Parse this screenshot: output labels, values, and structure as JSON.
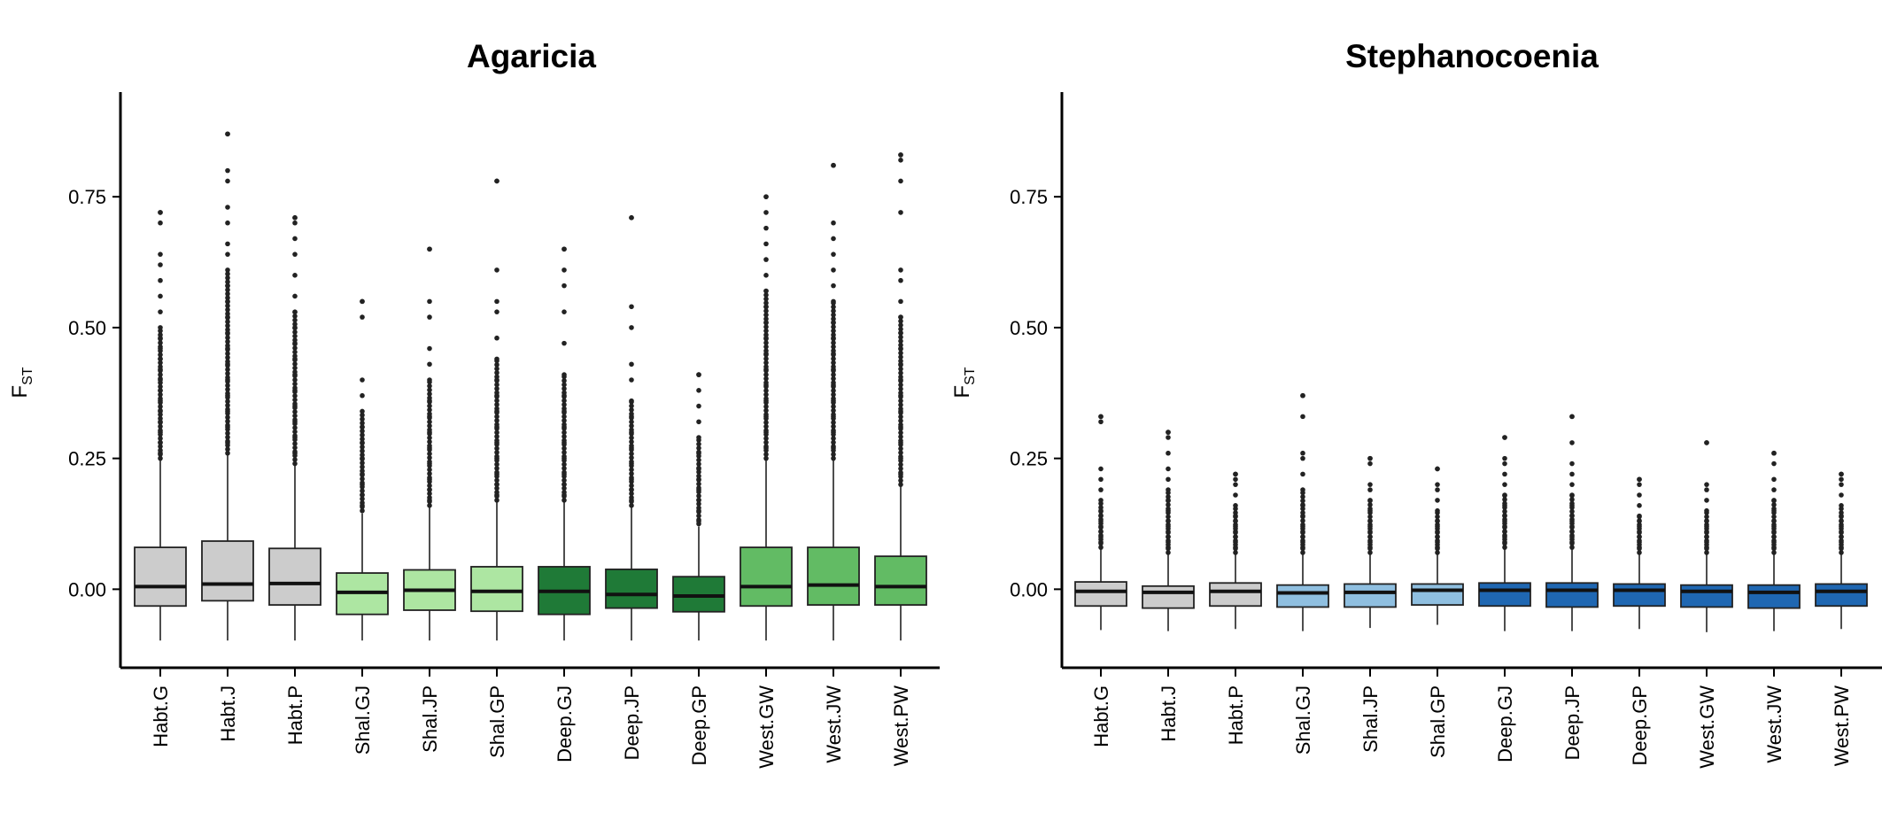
{
  "chart_data": [
    {
      "type": "box",
      "title": "Agaricia",
      "ylabel": "F",
      "ylabel_sub": "ST",
      "ylim": [
        -0.15,
        0.95
      ],
      "yticks": [
        0.0,
        0.25,
        0.5,
        0.75
      ],
      "ytick_labels": [
        "0.00",
        "0.25",
        "0.50",
        "0.75"
      ],
      "grid": false,
      "categories": [
        "Habt.G",
        "Habt.J",
        "Habt.P",
        "Shal.GJ",
        "Shal.JP",
        "Shal.GP",
        "Deep.GJ",
        "Deep.JP",
        "Deep.GP",
        "West.GW",
        "West.JW",
        "West.PW"
      ],
      "colors": [
        "#cccccc",
        "#cccccc",
        "#cccccc",
        "#ade6a2",
        "#ade6a2",
        "#ade6a2",
        "#1f7a37",
        "#1f7a37",
        "#1f7a37",
        "#62bb64",
        "#62bb64",
        "#62bb64"
      ],
      "boxes": [
        {
          "q1": -0.032,
          "median": 0.005,
          "q3": 0.08,
          "whisker_low": -0.098,
          "whisker_high": 0.246,
          "outlier_min": 0.25,
          "outlier_max": 0.72,
          "outliers": [
            0.26,
            0.28,
            0.3,
            0.32,
            0.34,
            0.36,
            0.38,
            0.4,
            0.42,
            0.44,
            0.46,
            0.48,
            0.5,
            0.53,
            0.56,
            0.59,
            0.62,
            0.64,
            0.7,
            0.72
          ]
        },
        {
          "q1": -0.022,
          "median": 0.01,
          "q3": 0.092,
          "whisker_low": -0.098,
          "whisker_high": 0.26,
          "outlier_min": 0.26,
          "outlier_max": 0.87,
          "outliers": [
            0.28,
            0.31,
            0.34,
            0.37,
            0.4,
            0.43,
            0.46,
            0.49,
            0.52,
            0.55,
            0.58,
            0.61,
            0.64,
            0.66,
            0.7,
            0.73,
            0.78,
            0.8,
            0.87
          ]
        },
        {
          "q1": -0.03,
          "median": 0.011,
          "q3": 0.078,
          "whisker_low": -0.098,
          "whisker_high": 0.24,
          "outlier_min": 0.24,
          "outlier_max": 0.71,
          "outliers": [
            0.26,
            0.29,
            0.32,
            0.35,
            0.38,
            0.41,
            0.44,
            0.47,
            0.5,
            0.53,
            0.56,
            0.6,
            0.64,
            0.67,
            0.7,
            0.71
          ]
        },
        {
          "q1": -0.048,
          "median": -0.006,
          "q3": 0.031,
          "whisker_low": -0.098,
          "whisker_high": 0.145,
          "outlier_min": 0.15,
          "outlier_max": 0.55,
          "outliers": [
            0.16,
            0.18,
            0.2,
            0.22,
            0.25,
            0.28,
            0.31,
            0.34,
            0.37,
            0.4,
            0.52,
            0.55
          ]
        },
        {
          "q1": -0.04,
          "median": -0.002,
          "q3": 0.037,
          "whisker_low": -0.098,
          "whisker_high": 0.16,
          "outlier_min": 0.16,
          "outlier_max": 0.65,
          "outliers": [
            0.17,
            0.19,
            0.21,
            0.24,
            0.27,
            0.3,
            0.33,
            0.36,
            0.4,
            0.43,
            0.46,
            0.52,
            0.55,
            0.65
          ]
        },
        {
          "q1": -0.042,
          "median": -0.004,
          "q3": 0.043,
          "whisker_low": -0.098,
          "whisker_high": 0.17,
          "outlier_min": 0.17,
          "outlier_max": 0.78,
          "outliers": [
            0.18,
            0.2,
            0.22,
            0.25,
            0.28,
            0.31,
            0.34,
            0.37,
            0.4,
            0.44,
            0.48,
            0.53,
            0.55,
            0.61,
            0.78
          ]
        },
        {
          "q1": -0.048,
          "median": -0.004,
          "q3": 0.043,
          "whisker_low": -0.098,
          "whisker_high": 0.17,
          "outlier_min": 0.17,
          "outlier_max": 0.65,
          "outliers": [
            0.18,
            0.2,
            0.22,
            0.25,
            0.28,
            0.31,
            0.34,
            0.37,
            0.41,
            0.47,
            0.53,
            0.58,
            0.61,
            0.65
          ]
        },
        {
          "q1": -0.036,
          "median": -0.01,
          "q3": 0.038,
          "whisker_low": -0.098,
          "whisker_high": 0.16,
          "outlier_min": 0.16,
          "outlier_max": 0.71,
          "outliers": [
            0.17,
            0.19,
            0.21,
            0.24,
            0.27,
            0.3,
            0.33,
            0.36,
            0.4,
            0.43,
            0.5,
            0.54,
            0.71
          ]
        },
        {
          "q1": -0.043,
          "median": -0.013,
          "q3": 0.024,
          "whisker_low": -0.098,
          "whisker_high": 0.12,
          "outlier_min": 0.125,
          "outlier_max": 0.41,
          "outliers": [
            0.13,
            0.15,
            0.17,
            0.19,
            0.21,
            0.23,
            0.26,
            0.29,
            0.32,
            0.35,
            0.38,
            0.41
          ]
        },
        {
          "q1": -0.032,
          "median": 0.005,
          "q3": 0.08,
          "whisker_low": -0.098,
          "whisker_high": 0.246,
          "outlier_min": 0.25,
          "outlier_max": 0.75,
          "outliers": [
            0.27,
            0.3,
            0.33,
            0.36,
            0.39,
            0.42,
            0.45,
            0.48,
            0.51,
            0.54,
            0.57,
            0.6,
            0.63,
            0.66,
            0.69,
            0.72,
            0.75
          ]
        },
        {
          "q1": -0.03,
          "median": 0.008,
          "q3": 0.08,
          "whisker_low": -0.098,
          "whisker_high": 0.246,
          "outlier_min": 0.25,
          "outlier_max": 0.81,
          "outliers": [
            0.27,
            0.3,
            0.33,
            0.36,
            0.39,
            0.42,
            0.45,
            0.48,
            0.51,
            0.55,
            0.58,
            0.61,
            0.64,
            0.67,
            0.7,
            0.81
          ]
        },
        {
          "q1": -0.03,
          "median": 0.005,
          "q3": 0.063,
          "whisker_low": -0.098,
          "whisker_high": 0.2,
          "outlier_min": 0.2,
          "outlier_max": 0.83,
          "outliers": [
            0.22,
            0.25,
            0.28,
            0.31,
            0.34,
            0.37,
            0.4,
            0.43,
            0.46,
            0.49,
            0.52,
            0.55,
            0.59,
            0.61,
            0.72,
            0.78,
            0.82,
            0.83
          ]
        }
      ]
    },
    {
      "type": "box",
      "title": "Stephanocoenia",
      "ylabel": "F",
      "ylabel_sub": "ST",
      "ylim": [
        -0.15,
        0.95
      ],
      "yticks": [
        0.0,
        0.25,
        0.5,
        0.75
      ],
      "ytick_labels": [
        "0.00",
        "0.25",
        "0.50",
        "0.75"
      ],
      "grid": false,
      "categories": [
        "Habt.G",
        "Habt.J",
        "Habt.P",
        "Shal.GJ",
        "Shal.JP",
        "Shal.GP",
        "Deep.GJ",
        "Deep.JP",
        "Deep.GP",
        "West.GW",
        "West.JW",
        "West.PW"
      ],
      "colors": [
        "#cccccc",
        "#cccccc",
        "#cccccc",
        "#8fbfe0",
        "#8fbfe0",
        "#8fbfe0",
        "#1f67b2",
        "#1f67b2",
        "#1f67b2",
        "#1f67b2",
        "#1f67b2",
        "#1f67b2"
      ],
      "boxes": [
        {
          "q1": -0.032,
          "median": -0.004,
          "q3": 0.014,
          "whisker_low": -0.078,
          "whisker_high": 0.08,
          "outlier_min": 0.08,
          "outlier_max": 0.33,
          "outliers": [
            0.09,
            0.1,
            0.11,
            0.12,
            0.13,
            0.14,
            0.15,
            0.17,
            0.19,
            0.21,
            0.23,
            0.32,
            0.33
          ]
        },
        {
          "q1": -0.036,
          "median": -0.006,
          "q3": 0.006,
          "whisker_low": -0.08,
          "whisker_high": 0.07,
          "outlier_min": 0.07,
          "outlier_max": 0.3,
          "outliers": [
            0.08,
            0.09,
            0.1,
            0.11,
            0.12,
            0.13,
            0.15,
            0.17,
            0.19,
            0.21,
            0.23,
            0.26,
            0.29,
            0.3
          ]
        },
        {
          "q1": -0.032,
          "median": -0.004,
          "q3": 0.012,
          "whisker_low": -0.076,
          "whisker_high": 0.07,
          "outlier_min": 0.07,
          "outlier_max": 0.22,
          "outliers": [
            0.08,
            0.09,
            0.1,
            0.11,
            0.12,
            0.13,
            0.14,
            0.16,
            0.18,
            0.2,
            0.21,
            0.22
          ]
        },
        {
          "q1": -0.034,
          "median": -0.007,
          "q3": 0.008,
          "whisker_low": -0.08,
          "whisker_high": 0.07,
          "outlier_min": 0.07,
          "outlier_max": 0.37,
          "outliers": [
            0.08,
            0.09,
            0.1,
            0.11,
            0.12,
            0.14,
            0.16,
            0.19,
            0.22,
            0.25,
            0.26,
            0.33,
            0.37
          ]
        },
        {
          "q1": -0.034,
          "median": -0.006,
          "q3": 0.01,
          "whisker_low": -0.074,
          "whisker_high": 0.07,
          "outlier_min": 0.07,
          "outlier_max": 0.25,
          "outliers": [
            0.08,
            0.09,
            0.1,
            0.11,
            0.12,
            0.13,
            0.15,
            0.17,
            0.19,
            0.2,
            0.24,
            0.25
          ]
        },
        {
          "q1": -0.03,
          "median": -0.002,
          "q3": 0.01,
          "whisker_low": -0.068,
          "whisker_high": 0.07,
          "outlier_min": 0.07,
          "outlier_max": 0.23,
          "outliers": [
            0.08,
            0.09,
            0.1,
            0.11,
            0.12,
            0.13,
            0.15,
            0.17,
            0.19,
            0.2,
            0.23
          ]
        },
        {
          "q1": -0.032,
          "median": -0.002,
          "q3": 0.012,
          "whisker_low": -0.08,
          "whisker_high": 0.08,
          "outlier_min": 0.08,
          "outlier_max": 0.29,
          "outliers": [
            0.09,
            0.1,
            0.11,
            0.12,
            0.13,
            0.14,
            0.16,
            0.18,
            0.2,
            0.22,
            0.24,
            0.25,
            0.29
          ]
        },
        {
          "q1": -0.034,
          "median": -0.002,
          "q3": 0.012,
          "whisker_low": -0.08,
          "whisker_high": 0.08,
          "outlier_min": 0.08,
          "outlier_max": 0.33,
          "outliers": [
            0.09,
            0.1,
            0.11,
            0.12,
            0.13,
            0.14,
            0.16,
            0.18,
            0.2,
            0.22,
            0.24,
            0.28,
            0.33
          ]
        },
        {
          "q1": -0.032,
          "median": -0.002,
          "q3": 0.01,
          "whisker_low": -0.076,
          "whisker_high": 0.07,
          "outlier_min": 0.07,
          "outlier_max": 0.21,
          "outliers": [
            0.08,
            0.09,
            0.1,
            0.11,
            0.12,
            0.13,
            0.14,
            0.16,
            0.18,
            0.2,
            0.21
          ]
        },
        {
          "q1": -0.034,
          "median": -0.004,
          "q3": 0.008,
          "whisker_low": -0.082,
          "whisker_high": 0.07,
          "outlier_min": 0.07,
          "outlier_max": 0.28,
          "outliers": [
            0.08,
            0.09,
            0.1,
            0.11,
            0.12,
            0.13,
            0.15,
            0.17,
            0.19,
            0.2,
            0.28
          ]
        },
        {
          "q1": -0.036,
          "median": -0.006,
          "q3": 0.008,
          "whisker_low": -0.08,
          "whisker_high": 0.07,
          "outlier_min": 0.07,
          "outlier_max": 0.26,
          "outliers": [
            0.08,
            0.09,
            0.1,
            0.11,
            0.12,
            0.13,
            0.15,
            0.17,
            0.19,
            0.21,
            0.24,
            0.26
          ]
        },
        {
          "q1": -0.032,
          "median": -0.004,
          "q3": 0.01,
          "whisker_low": -0.076,
          "whisker_high": 0.07,
          "outlier_min": 0.07,
          "outlier_max": 0.22,
          "outliers": [
            0.08,
            0.09,
            0.1,
            0.11,
            0.12,
            0.13,
            0.14,
            0.16,
            0.18,
            0.2,
            0.21,
            0.22
          ]
        }
      ]
    }
  ]
}
